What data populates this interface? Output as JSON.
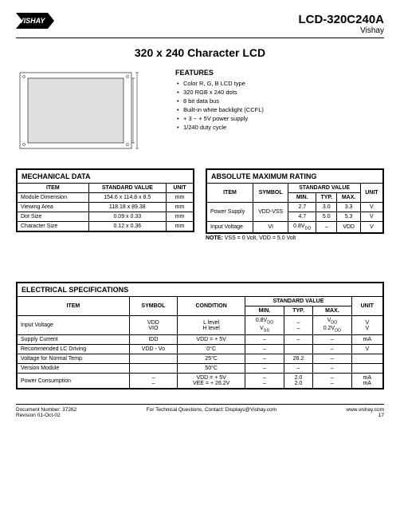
{
  "header": {
    "part_no": "LCD-320C240A",
    "brand": "Vishay"
  },
  "main_title": "320 x 240 Character LCD",
  "diagram": {
    "width": 160,
    "height": 100,
    "stroke": "#000"
  },
  "features": {
    "title": "FEATURES",
    "items": [
      "Color R, G, B LCD type",
      "320 RGB x 240 dots",
      "8 bit data bus",
      "Built-in white backlight (CCFL)",
      "+ 3 ~ + 5V power supply",
      "1/240 duty cycle"
    ]
  },
  "mech": {
    "title": "MECHANICAL DATA",
    "headers": [
      "ITEM",
      "STANDARD VALUE",
      "UNIT"
    ],
    "rows": [
      [
        "Module Dimension",
        "154.6 x 114.8 x 8.5",
        "mm"
      ],
      [
        "Viewing Area",
        "118.18 x 89.38",
        "mm"
      ],
      [
        "Dot Size",
        "0.09 x 0.33",
        "mm"
      ],
      [
        "Character Size",
        "0.12 x 0.36",
        "mm"
      ]
    ]
  },
  "abs": {
    "title": "ABSOLUTE MAXIMUM RATING",
    "headers": {
      "item": "ITEM",
      "symbol": "SYMBOL",
      "std": "STANDARD VALUE",
      "unit": "UNIT",
      "min": "MIN.",
      "typ": "TYP.",
      "max": "MAX."
    },
    "rows": [
      {
        "item": "Power Supply",
        "symbol": "VDD-VSS",
        "r": [
          [
            "2.7",
            "3.0",
            "3.3",
            "V"
          ],
          [
            "4.7",
            "5.0",
            "5.3",
            "V"
          ]
        ]
      },
      {
        "item": "Input Voltage",
        "symbol": "VI",
        "r": [
          [
            "0.8V_DD",
            "–",
            "VDD",
            "V"
          ]
        ]
      }
    ],
    "note_label": "NOTE:",
    "note": "VSS = 0 Volt, VDD = 5.0 Volt"
  },
  "elec": {
    "title": "ELECTRICAL SPECIFICATIONS",
    "headers": {
      "item": "ITEM",
      "symbol": "SYMBOL",
      "cond": "CONDITION",
      "std": "STANDARD VALUE",
      "unit": "UNIT",
      "min": "MIN.",
      "typ": "TYP.",
      "max": "MAX."
    },
    "rows": [
      {
        "item": "Input Voltage",
        "symbol": "VDD\nVIO",
        "cond": "L level\nH level",
        "min": "0.8V_DD\nV_SS",
        "typ": "–\n–",
        "max": "V_DD\n0.2V_DD",
        "unit": "V\nV"
      },
      {
        "item": "Supply Current",
        "symbol": "IDD",
        "cond": "VDD = + 5V",
        "min": "–",
        "typ": "–",
        "max": "–",
        "unit": "mA"
      },
      {
        "item": "Recommended LC Driving",
        "symbol": "VDD - Vo",
        "cond": "0°C",
        "min": "–",
        "typ": "",
        "max": "–",
        "unit": "V"
      },
      {
        "item": "Voltage for Normal Temp.",
        "symbol": "",
        "cond": "25°C",
        "min": "–",
        "typ": "26.2",
        "max": "–",
        "unit": ""
      },
      {
        "item": "Version Module",
        "symbol": "",
        "cond": "50°C",
        "min": "–",
        "typ": "–",
        "max": "–",
        "unit": ""
      },
      {
        "item": "Power Consumption",
        "symbol": "–\n–",
        "cond": "VDD = + 5V\nVEE = + 26.2V",
        "min": "–\n–",
        "typ": "2.0\n2.0",
        "max": "–\n–",
        "unit": "mA\nmA"
      }
    ]
  },
  "footer": {
    "doc": "Document Number: 37262",
    "rev": "Revision 01-Oct-02",
    "contact": "For Technical Questions, Contact: Displays@Vishay.com",
    "url": "www.vishay.com",
    "page": "17"
  }
}
